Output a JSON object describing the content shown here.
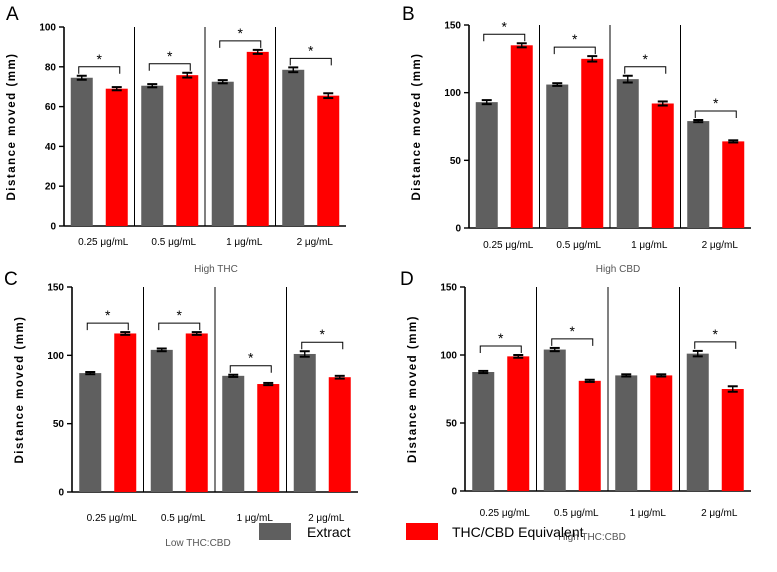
{
  "colors": {
    "extract": "#5f5f5f",
    "equivalent": "#ff0000",
    "axis": "#000000"
  },
  "legend": [
    {
      "name": "Extract",
      "color": "#5f5f5f"
    },
    {
      "name": "THC/CBD Equivalent",
      "color": "#ff0000"
    }
  ],
  "chart_data": [
    {
      "panel": "A",
      "type": "bar",
      "title": "High THC",
      "ylabel": "Distance moved (mm)",
      "ylim": [
        0,
        100
      ],
      "yticks": [
        0,
        20,
        40,
        60,
        80,
        100
      ],
      "categories": [
        "0.25 μg/mL",
        "0.5 μg/mL",
        "1  μg/mL",
        "2 μg/mL"
      ],
      "series": [
        {
          "name": "Extract",
          "values": [
            74.5,
            70.5,
            72.5,
            78.5
          ],
          "errors": [
            1.0,
            0.8,
            0.8,
            1.2
          ]
        },
        {
          "name": "THC/CBD Equivalent",
          "values": [
            69.0,
            75.8,
            87.5,
            65.5
          ],
          "errors": [
            0.8,
            1.2,
            1.0,
            1.2
          ]
        }
      ],
      "significant": [
        "*",
        "*",
        "*",
        "*"
      ]
    },
    {
      "panel": "B",
      "type": "bar",
      "title": "High CBD",
      "ylabel": "Distance moved (mm)",
      "ylim": [
        0,
        150
      ],
      "yticks": [
        0,
        50,
        100,
        150
      ],
      "categories": [
        "0.25 μg/mL",
        "0.5 μg/mL",
        "1  μg/mL",
        "2 μg/mL"
      ],
      "series": [
        {
          "name": "Extract",
          "values": [
            93,
            106,
            110,
            79
          ],
          "errors": [
            1.5,
            1.0,
            2.5,
            0.8
          ]
        },
        {
          "name": "THC/CBD Equivalent",
          "values": [
            135,
            125,
            92,
            64
          ],
          "errors": [
            1.5,
            2.0,
            1.5,
            0.8
          ]
        }
      ],
      "significant": [
        "*",
        "*",
        "*",
        "*"
      ]
    },
    {
      "panel": "C",
      "type": "bar",
      "title": "Low THC:CBD",
      "ylabel": "Distance moved (mm)",
      "ylim": [
        0,
        150
      ],
      "yticks": [
        0,
        50,
        100,
        150
      ],
      "categories": [
        "0.25 μg/mL",
        "0.5 μg/mL",
        "1  μg/mL",
        "2 μg/mL"
      ],
      "series": [
        {
          "name": "Extract",
          "values": [
            87,
            104,
            85,
            101
          ],
          "errors": [
            0.8,
            1.0,
            0.8,
            2.0
          ]
        },
        {
          "name": "THC/CBD Equivalent",
          "values": [
            116,
            116,
            79,
            84
          ],
          "errors": [
            1.0,
            1.0,
            0.8,
            1.0
          ]
        }
      ],
      "significant": [
        "*",
        "*",
        "*",
        "*"
      ]
    },
    {
      "panel": "D",
      "type": "bar",
      "title": "High THC:CBD",
      "ylabel": "Distance moved (mm)",
      "ylim": [
        0,
        150
      ],
      "yticks": [
        0,
        50,
        100,
        150
      ],
      "categories": [
        "0.25 μg/mL",
        "0.5 μg/mL",
        "1  μg/mL",
        "2 μg/mL"
      ],
      "series": [
        {
          "name": "Extract",
          "values": [
            87.5,
            104,
            85,
            101
          ],
          "errors": [
            0.8,
            1.2,
            0.8,
            2.0
          ]
        },
        {
          "name": "THC/CBD Equivalent",
          "values": [
            99,
            81,
            85,
            75
          ],
          "errors": [
            1.0,
            0.8,
            0.8,
            2.0
          ]
        }
      ],
      "significant": [
        "*",
        "*",
        "",
        "*"
      ]
    }
  ]
}
